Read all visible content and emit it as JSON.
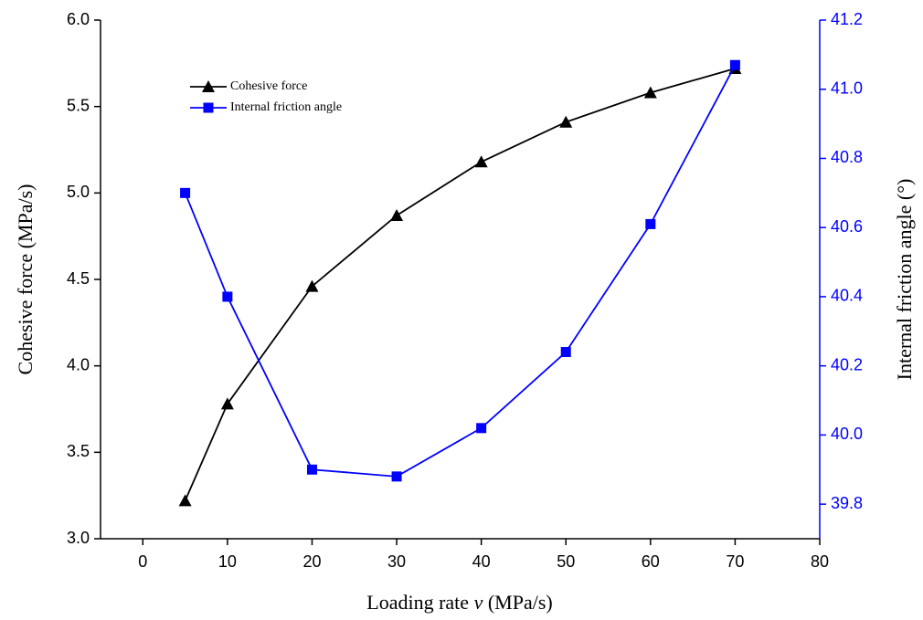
{
  "chart_data": {
    "type": "line",
    "x_label_parts": [
      "Loading rate ",
      "v",
      " (MPa/s)"
    ],
    "y_label": "Cohesive force (MPa/s)",
    "y2_label": "Internal friction angle (°)",
    "x": [
      5,
      10,
      20,
      30,
      40,
      50,
      60,
      70
    ],
    "series": [
      {
        "name": "Cohesive force",
        "color": "#000000",
        "marker": "triangle",
        "values": [
          3.22,
          3.78,
          4.46,
          4.87,
          5.18,
          5.41,
          5.58,
          5.72
        ]
      },
      {
        "name": "Internal friction angle",
        "color": "#0000ff",
        "marker": "square",
        "axis": "y2",
        "values": [
          40.7,
          40.4,
          39.9,
          39.88,
          40.02,
          40.24,
          40.61,
          41.07
        ]
      }
    ],
    "xlim": [
      -5,
      80
    ],
    "xticks": [
      0,
      10,
      20,
      30,
      40,
      50,
      60,
      70,
      80
    ],
    "ylim": [
      3.0,
      6.0
    ],
    "yticks": [
      {
        "value": 3.0,
        "label": "3.0"
      },
      3.5,
      {
        "value": 4.0,
        "label": "4.0"
      },
      4.5,
      {
        "value": 5.0,
        "label": "5.0"
      },
      5.5,
      {
        "value": 6.0,
        "label": "6.0"
      }
    ],
    "y2lim": [
      39.7,
      41.2
    ],
    "y2ticks": [
      39.8,
      {
        "value": 40.0,
        "label": "40.0"
      },
      40.2,
      40.4,
      40.6,
      40.8,
      {
        "value": 41.0,
        "label": "41.0"
      },
      41.2
    ],
    "y2_color": "#0000ff",
    "legend": "upper left",
    "grid": false
  }
}
